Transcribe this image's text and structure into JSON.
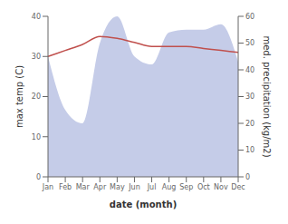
{
  "chart_data": {
    "type": "line",
    "xlabel": "date (month)",
    "ylabel": "max temp (C)",
    "y2label": "med. precipitation (kg/m2)",
    "categories": [
      "Jan",
      "Feb",
      "Mar",
      "Apr",
      "May",
      "Jun",
      "Jul",
      "Aug",
      "Sep",
      "Oct",
      "Nov",
      "Dec"
    ],
    "series": [
      {
        "name": "max temp",
        "type": "line",
        "color": "#c0504d",
        "values": [
          30.0,
          31.5,
          33.0,
          35.0,
          34.5,
          33.5,
          32.5,
          32.5,
          32.5,
          32.0,
          31.5,
          31.0
        ]
      },
      {
        "name": "precipitation",
        "type": "area",
        "axis": "y2",
        "color": "#c5cce8",
        "values": [
          45,
          25,
          20,
          50,
          60,
          45,
          42,
          54,
          55,
          55,
          57,
          43
        ]
      }
    ],
    "ylim": [
      0,
      40
    ],
    "yticks": [
      0,
      10,
      20,
      30,
      40
    ],
    "y2lim": [
      0,
      60
    ],
    "y2ticks": [
      0,
      10,
      20,
      30,
      40,
      50,
      60
    ],
    "grid": false
  }
}
